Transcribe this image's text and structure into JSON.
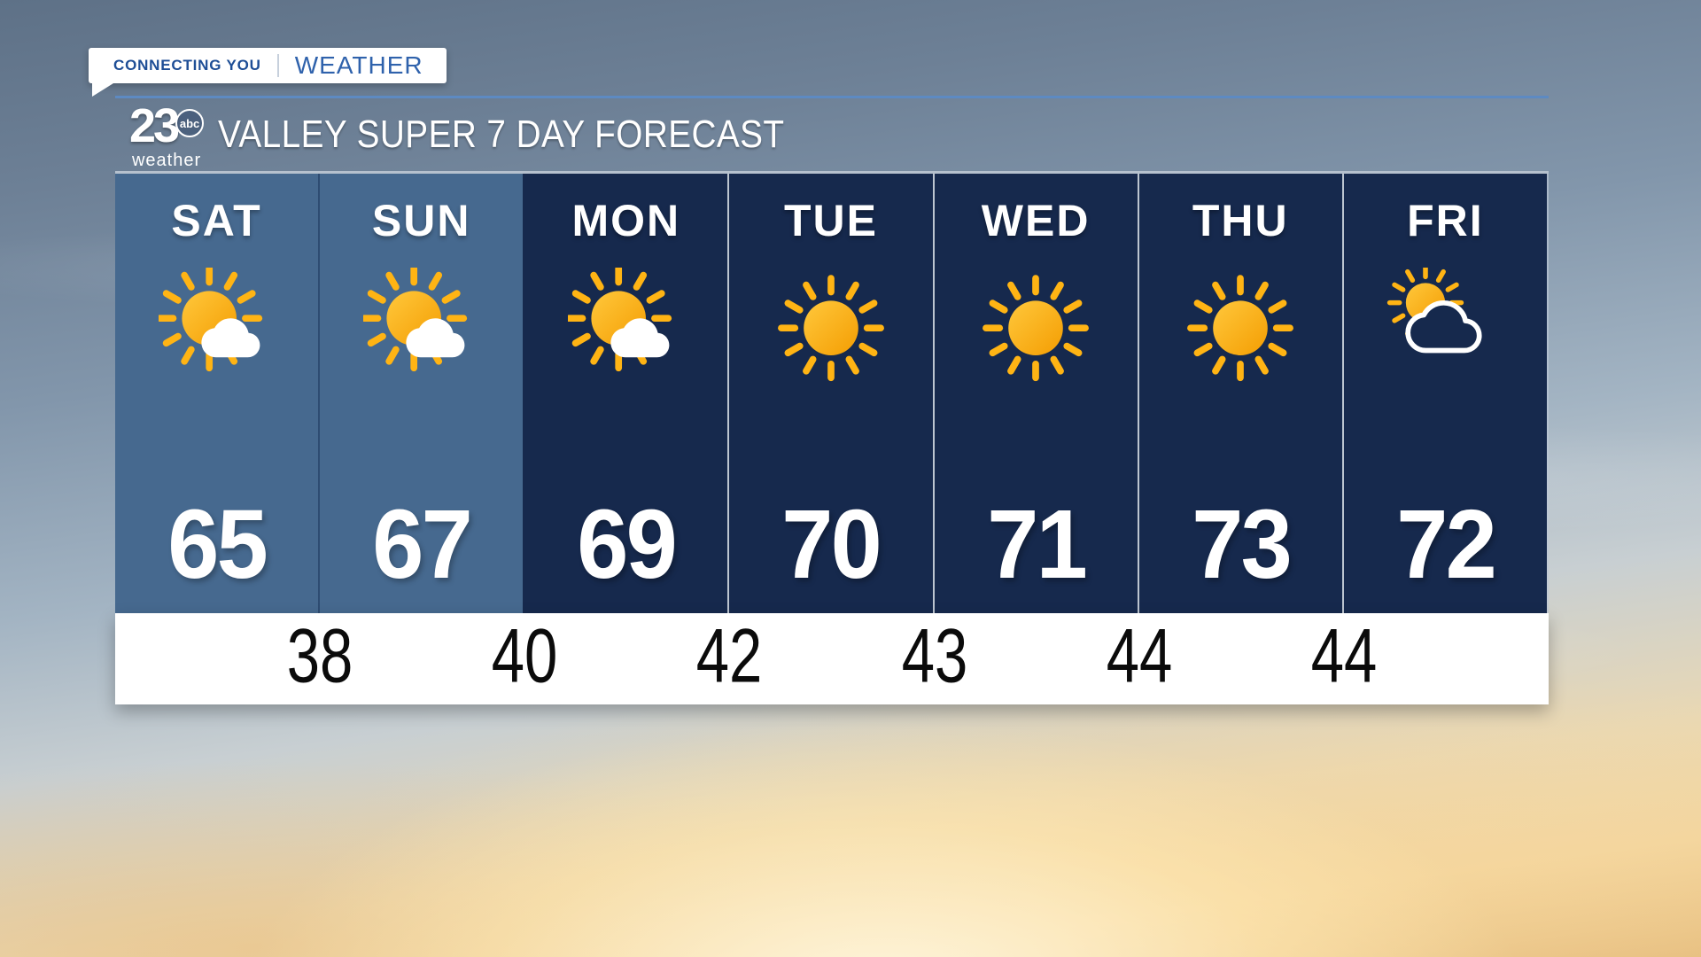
{
  "badge": {
    "primary": "CONNECTING YOU",
    "secondary": "WEATHER"
  },
  "header": {
    "logo_number": "23",
    "logo_network": "abc",
    "logo_sub": "weather",
    "title": "VALLEY SUPER 7 DAY FORECAST"
  },
  "chart_data": {
    "type": "table",
    "title": "VALLEY SUPER 7 DAY FORECAST",
    "columns": [
      "day",
      "condition",
      "high_f",
      "overnight_low_f"
    ],
    "days": [
      {
        "label": "SAT",
        "condition": "partly-cloudy",
        "icon": "sun-cloud-icon",
        "high": "65",
        "highlight": true
      },
      {
        "label": "SUN",
        "condition": "partly-cloudy",
        "icon": "sun-cloud-icon",
        "high": "67",
        "highlight": true
      },
      {
        "label": "MON",
        "condition": "partly-cloudy",
        "icon": "sun-cloud-icon",
        "high": "69",
        "highlight": false
      },
      {
        "label": "TUE",
        "condition": "sunny",
        "icon": "sun-icon",
        "high": "70",
        "highlight": false
      },
      {
        "label": "WED",
        "condition": "sunny",
        "icon": "sun-icon",
        "high": "71",
        "highlight": false
      },
      {
        "label": "THU",
        "condition": "sunny",
        "icon": "sun-icon",
        "high": "73",
        "highlight": false
      },
      {
        "label": "FRI",
        "condition": "partly-cloudy",
        "icon": "sun-behind-cloud-icon",
        "high": "72",
        "highlight": false
      }
    ],
    "lows": [
      "38",
      "40",
      "42",
      "43",
      "44",
      "44"
    ],
    "lows_alignment": "between-columns",
    "legend_position": "none",
    "grid": "column-dividers"
  },
  "colors": {
    "panel_navy": "#16294d",
    "weekend_blue": "#46698f",
    "header_blue_top": "#2e5c99",
    "header_blue_bottom": "#183562",
    "sun_yellow": "#FFC83C",
    "sun_orange": "#F49D02",
    "ray_gold": "#FFB414",
    "low_strip_bg": "#ffffff",
    "low_text": "#0b0b0b",
    "badge_primary_text": "#1e4e96",
    "badge_secondary_text": "#2f62ac"
  }
}
